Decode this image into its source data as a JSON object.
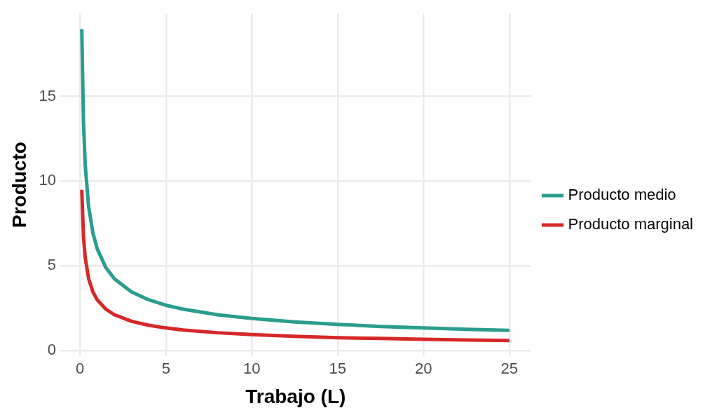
{
  "chart_data": {
    "type": "line",
    "xlabel": "Trabajo (L)",
    "ylabel": "Producto",
    "x": [
      0.1,
      0.2,
      0.3,
      0.5,
      0.75,
      1,
      1.5,
      2,
      3,
      4,
      5,
      6,
      8,
      10,
      12.5,
      15,
      17.5,
      20,
      22.5,
      25
    ],
    "series": [
      {
        "name": "Producto medio",
        "color": "#2a9d8f",
        "values": [
          18.97,
          13.42,
          10.95,
          8.49,
          6.93,
          6,
          4.9,
          4.24,
          3.46,
          3,
          2.68,
          2.45,
          2.12,
          1.9,
          1.7,
          1.55,
          1.43,
          1.34,
          1.26,
          1.2
        ]
      },
      {
        "name": "Producto marginal",
        "color": "#d62828",
        "values": [
          9.49,
          6.71,
          5.48,
          4.24,
          3.46,
          3,
          2.45,
          2.12,
          1.73,
          1.5,
          1.34,
          1.22,
          1.06,
          0.95,
          0.85,
          0.77,
          0.72,
          0.67,
          0.63,
          0.6
        ]
      }
    ],
    "xlim": [
      -1.15,
      26.25
    ],
    "xticks": [
      0,
      5,
      10,
      15,
      20,
      25
    ],
    "ylim": [
      -0.32,
      19.89
    ],
    "yticks": [
      0,
      5,
      10,
      15
    ],
    "grid": true,
    "legend": "right",
    "marker": "none",
    "line_style": "solid"
  }
}
